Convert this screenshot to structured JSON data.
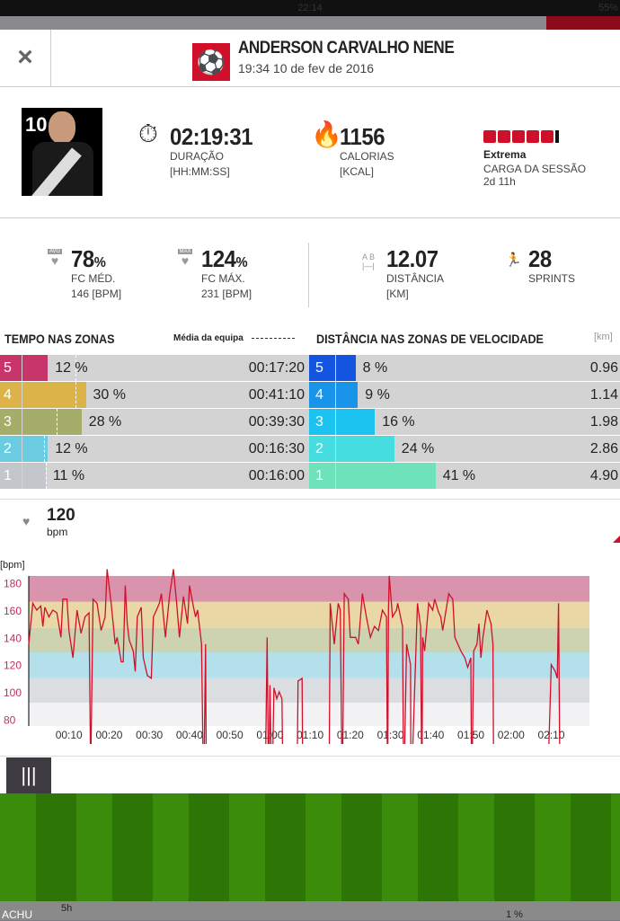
{
  "status_bar": {
    "time": "22:14",
    "battery": "55%"
  },
  "header": {
    "close_icon": "×",
    "player_name": "ANDERSON CARVALHO NENE",
    "datetime": "19:34 10 de fev de 2016",
    "sport_icon": "soccer-player-icon"
  },
  "player": {
    "number": "10"
  },
  "summary": {
    "duration": {
      "value": "02:19:31",
      "label": "DURAÇÃO",
      "unit": "[HH:MM:SS]",
      "icon": "stopwatch-icon"
    },
    "calories": {
      "value": "1156",
      "label": "CALORIAS",
      "unit": "[KCAL]",
      "icon": "flame-icon"
    },
    "load": {
      "level": "Extrema",
      "label": "CARGA DA SESSÃO",
      "recovery": "2d 11h",
      "bars_filled": 5
    }
  },
  "stats": {
    "hr_avg": {
      "badge": "AVG",
      "value": "78",
      "pct": "%",
      "label": "FC MÉD.",
      "sub": "146 [BPM]"
    },
    "hr_max": {
      "badge": "MAX",
      "value": "124",
      "pct": "%",
      "label": "FC MÁX.",
      "sub": "231 [BPM]"
    },
    "distance": {
      "value": "12.07",
      "label": "DISTÂNCIA",
      "sub": "[KM]"
    },
    "sprints": {
      "value": "28",
      "label": "SPRINTS"
    }
  },
  "hr_zones": {
    "title": "TEMPO NAS ZONAS",
    "legend": "Média da equipa",
    "rows": [
      {
        "zone": "5",
        "pct": 12,
        "pct_label": "12 %",
        "time": "00:17:20",
        "color": "#c8356a",
        "team_avg": 25
      },
      {
        "zone": "4",
        "pct": 30,
        "pct_label": "30 %",
        "time": "00:41:10",
        "color": "#dbb349",
        "team_avg": 25
      },
      {
        "zone": "3",
        "pct": 28,
        "pct_label": "28 %",
        "time": "00:39:30",
        "color": "#a4ad6a",
        "team_avg": 16
      },
      {
        "zone": "2",
        "pct": 12,
        "pct_label": "12 %",
        "time": "00:16:30",
        "color": "#6bcbe0",
        "team_avg": 10
      },
      {
        "zone": "1",
        "pct": 11,
        "pct_label": "11 %",
        "time": "00:16:00",
        "color": "#c3c7cc",
        "team_avg": 11
      }
    ]
  },
  "speed_zones": {
    "title": "DISTÂNCIA NAS ZONAS DE VELOCIDADE",
    "unit": "[km]",
    "rows": [
      {
        "zone": "5",
        "pct": 8,
        "pct_label": "8 %",
        "km": "0.96",
        "color": "#1354e0"
      },
      {
        "zone": "4",
        "pct": 9,
        "pct_label": "9 %",
        "km": "1.14",
        "color": "#1a93ea"
      },
      {
        "zone": "3",
        "pct": 16,
        "pct_label": "16 %",
        "km": "1.98",
        "color": "#1cc3f0"
      },
      {
        "zone": "2",
        "pct": 24,
        "pct_label": "24 %",
        "km": "2.86",
        "color": "#45dde0"
      },
      {
        "zone": "1",
        "pct": 41,
        "pct_label": "41 %",
        "km": "4.90",
        "color": "#6ee2bb"
      }
    ]
  },
  "hr_readout": {
    "value": "120",
    "unit": "bpm"
  },
  "chart_data": {
    "type": "line",
    "ylabel": "[bpm]",
    "yticks": [
      180,
      160,
      140,
      120,
      100,
      80
    ],
    "xticks": [
      "00:10",
      "00:20",
      "00:30",
      "00:40",
      "00:50",
      "01:00",
      "01:10",
      "01:20",
      "01:30",
      "01:40",
      "01:50",
      "02:00",
      "02:10"
    ],
    "xlim_min": [
      0,
      139.5
    ],
    "ylim": [
      75,
      185
    ],
    "line_color": "#d0102a",
    "zone_bands": [
      {
        "from": 166,
        "to": 185,
        "color": "#d993ad"
      },
      {
        "from": 147,
        "to": 166,
        "color": "#ead7a6"
      },
      {
        "from": 129,
        "to": 147,
        "color": "#cdd3b0"
      },
      {
        "from": 110,
        "to": 129,
        "color": "#b4e0ec"
      },
      {
        "from": 92,
        "to": 110,
        "color": "#dcdde0"
      },
      {
        "from": 75,
        "to": 92,
        "color": "#f2f2f4"
      }
    ],
    "series_min_bpm": [
      [
        0,
        135
      ],
      [
        1,
        165
      ],
      [
        2,
        160
      ],
      [
        3,
        163
      ],
      [
        3.5,
        148
      ],
      [
        4,
        162
      ],
      [
        5,
        155
      ],
      [
        6,
        160
      ],
      [
        7,
        158
      ],
      [
        8,
        140
      ],
      [
        8.5,
        168
      ],
      [
        9.5,
        168
      ],
      [
        10,
        145
      ],
      [
        11,
        125
      ],
      [
        12,
        160
      ],
      [
        13,
        143
      ],
      [
        14,
        155
      ],
      [
        15,
        158
      ],
      [
        15.4,
        40
      ],
      [
        16,
        168
      ],
      [
        17,
        165
      ],
      [
        18,
        145
      ],
      [
        19,
        155
      ],
      [
        19.5,
        190
      ],
      [
        20.5,
        165
      ],
      [
        21.5,
        135
      ],
      [
        22,
        140
      ],
      [
        23,
        122
      ],
      [
        23.5,
        122
      ],
      [
        24,
        178
      ],
      [
        24.5,
        150
      ],
      [
        25,
        138
      ],
      [
        26,
        130
      ],
      [
        26.5,
        115
      ],
      [
        27,
        155
      ],
      [
        28,
        162
      ],
      [
        28.5,
        125
      ],
      [
        29.5,
        112
      ],
      [
        30.5,
        110
      ],
      [
        31,
        155
      ],
      [
        32.5,
        165
      ],
      [
        33,
        172
      ],
      [
        34,
        140
      ],
      [
        35,
        170
      ],
      [
        36,
        190
      ],
      [
        36.8,
        165
      ],
      [
        37.5,
        140
      ],
      [
        38.5,
        170
      ],
      [
        39.5,
        150
      ],
      [
        40,
        178
      ],
      [
        41,
        162
      ],
      [
        41.5,
        155
      ],
      [
        42,
        160
      ],
      [
        43,
        135
      ],
      [
        43.5,
        20
      ],
      [
        44,
        135
      ],
      [
        44.2,
        20
      ],
      [
        58.8,
        20
      ],
      [
        59.3,
        140
      ],
      [
        59.7,
        20
      ],
      [
        60,
        105
      ],
      [
        60.5,
        20
      ],
      [
        61,
        103
      ],
      [
        61.7,
        95
      ],
      [
        62.3,
        100
      ],
      [
        63,
        95
      ],
      [
        63.3,
        20
      ],
      [
        66.7,
        20
      ],
      [
        67,
        108
      ],
      [
        68,
        110
      ],
      [
        68.2,
        20
      ],
      [
        74.7,
        20
      ],
      [
        75,
        165
      ],
      [
        76,
        135
      ],
      [
        77,
        165
      ],
      [
        77.5,
        160
      ],
      [
        78,
        20
      ],
      [
        78.5,
        172
      ],
      [
        79.5,
        168
      ],
      [
        80,
        140
      ],
      [
        81.3,
        140
      ],
      [
        82,
        135
      ],
      [
        83,
        172
      ],
      [
        84,
        155
      ],
      [
        85,
        140
      ],
      [
        86,
        148
      ],
      [
        87,
        145
      ],
      [
        88,
        160
      ],
      [
        89,
        155
      ],
      [
        89.3,
        20
      ],
      [
        89.5,
        160
      ],
      [
        89.7,
        185
      ],
      [
        90.5,
        155
      ],
      [
        91.5,
        160
      ],
      [
        91.8,
        165
      ],
      [
        93,
        148
      ],
      [
        93.3,
        20
      ],
      [
        94,
        135
      ],
      [
        95,
        120
      ],
      [
        95.1,
        20
      ],
      [
        96.7,
        165
      ],
      [
        97.5,
        148
      ],
      [
        97.8,
        20
      ],
      [
        98,
        140
      ],
      [
        98.5,
        130
      ],
      [
        99.5,
        165
      ],
      [
        100.5,
        160
      ],
      [
        101,
        168
      ],
      [
        102,
        158
      ],
      [
        102.5,
        155
      ],
      [
        103,
        145
      ],
      [
        104.5,
        172
      ],
      [
        105.5,
        168
      ],
      [
        106,
        140
      ],
      [
        107.5,
        130
      ],
      [
        108.5,
        125
      ],
      [
        109.2,
        118
      ],
      [
        110,
        125
      ],
      [
        110.2,
        20
      ],
      [
        110.7,
        130
      ],
      [
        111.5,
        135
      ],
      [
        112,
        150
      ],
      [
        112.5,
        125
      ],
      [
        113,
        140
      ],
      [
        114,
        160
      ],
      [
        115,
        150
      ],
      [
        115.5,
        135
      ],
      [
        115.7,
        20
      ],
      [
        129,
        20
      ],
      [
        130,
        120
      ],
      [
        131,
        115
      ],
      [
        131.5,
        110
      ],
      [
        131.8,
        165
      ],
      [
        132.2,
        20
      ]
    ]
  },
  "toolbar": {
    "menu_icon": "|||"
  },
  "underlay": {
    "name": "ACHU",
    "load": "5h",
    "pct": "1 %"
  }
}
